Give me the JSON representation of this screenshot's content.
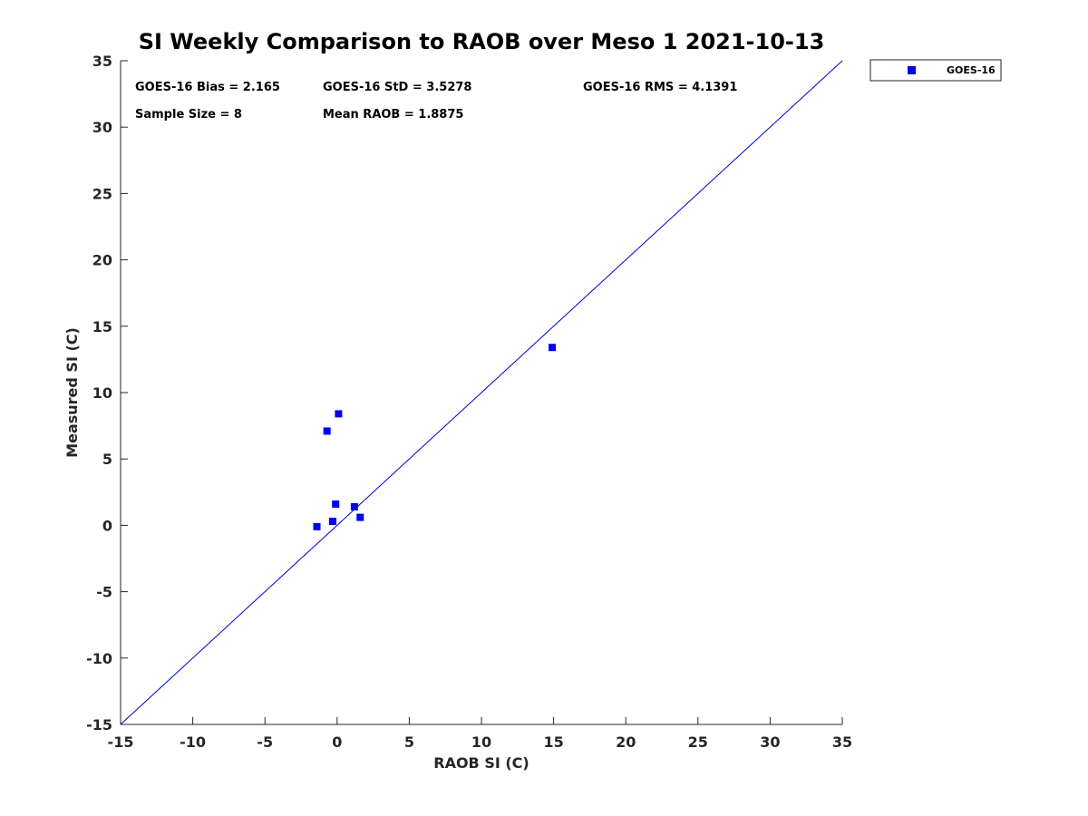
{
  "chart_data": {
    "type": "scatter",
    "title": "SI Weekly Comparison to RAOB over Meso 1 2021-10-13",
    "xlabel": "RAOB SI (C)",
    "ylabel": "Measured SI (C)",
    "xlim": [
      -15,
      35
    ],
    "ylim": [
      -15,
      35
    ],
    "xticks": [
      -15,
      -10,
      -5,
      0,
      5,
      10,
      15,
      20,
      25,
      30,
      35
    ],
    "yticks": [
      -15,
      -10,
      -5,
      0,
      5,
      10,
      15,
      20,
      25,
      30,
      35
    ],
    "grid": false,
    "legend_position": "outside-top-right",
    "series": [
      {
        "name": "GOES-16",
        "color": "#0000ee",
        "marker": "square",
        "x": [
          -1.4,
          -0.3,
          -0.1,
          1.2,
          1.6,
          -0.7,
          0.1,
          14.9
        ],
        "y": [
          -0.1,
          0.3,
          1.6,
          1.4,
          0.6,
          7.1,
          8.4,
          13.4
        ]
      }
    ],
    "reference_line": {
      "name": "one-to-one",
      "color": "#0000cc",
      "from": [
        -15,
        -15
      ],
      "to": [
        35,
        35
      ]
    },
    "stats": [
      "GOES-16 Bias = 2.165",
      "GOES-16 StD = 3.5278",
      "GOES-16 RMS = 4.1391",
      "Sample Size = 8",
      "Mean RAOB = 1.8875"
    ]
  }
}
